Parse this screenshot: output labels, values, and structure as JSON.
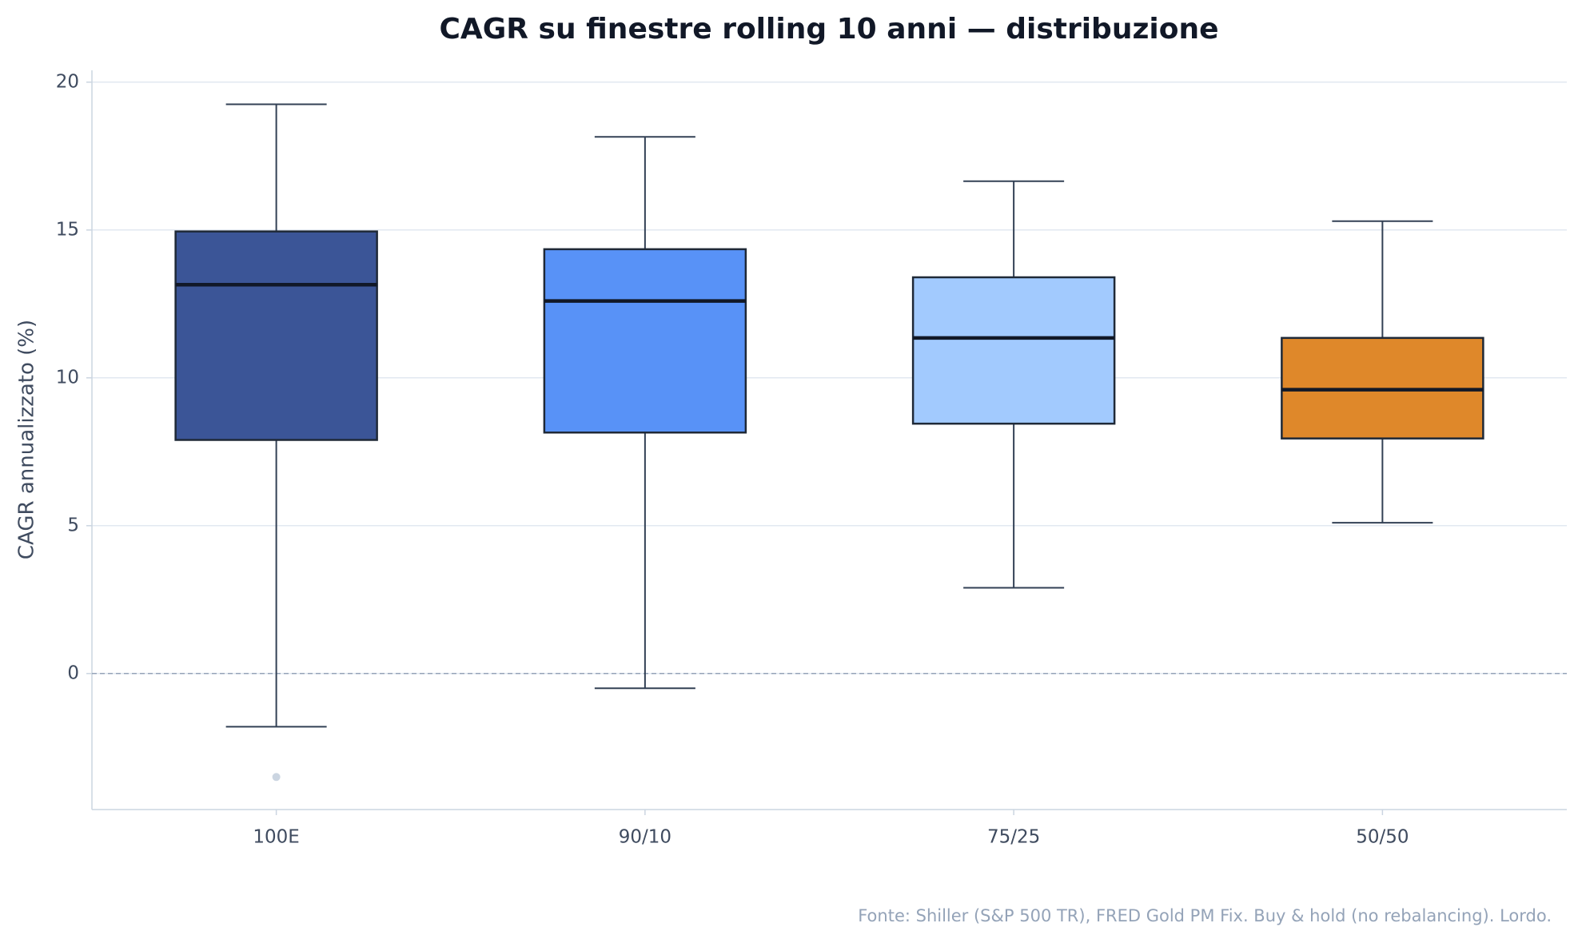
{
  "chart_data": {
    "type": "box",
    "title": "CAGR su finestre rolling 10 anni — distribuzione",
    "y_label": "CAGR annualizzato (%)",
    "source": "Fonte: Shiller (S&P 500 TR), FRED Gold PM Fix. Buy & hold (no rebalancing). Lordo.",
    "categories": [
      "100E",
      "90/10",
      "75/25",
      "50/50"
    ],
    "boxes": [
      {
        "whislo": -1.8,
        "q1": 7.9,
        "median": 13.15,
        "q3": 14.95,
        "whishi": 19.25,
        "fliers": [
          -3.5
        ],
        "color": "#3b5597"
      },
      {
        "whislo": -0.5,
        "q1": 8.15,
        "median": 12.6,
        "q3": 14.35,
        "whishi": 18.15,
        "fliers": [],
        "color": "#5892f7"
      },
      {
        "whislo": 2.9,
        "q1": 8.45,
        "median": 11.35,
        "q3": 13.4,
        "whishi": 16.65,
        "fliers": [],
        "color": "#a2cafe"
      },
      {
        "whislo": 5.1,
        "q1": 7.95,
        "median": 9.6,
        "q3": 11.35,
        "whishi": 15.3,
        "fliers": [],
        "color": "#df882a"
      }
    ],
    "ylim": [
      -4.6,
      20.4
    ],
    "yticks": [
      0,
      5,
      10,
      15,
      20
    ],
    "reference_line": 0,
    "grid": true
  }
}
